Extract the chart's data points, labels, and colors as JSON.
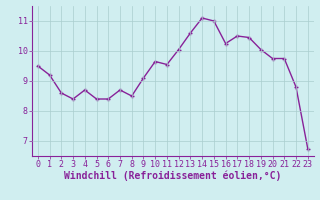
{
  "x": [
    0,
    1,
    2,
    3,
    4,
    5,
    6,
    7,
    8,
    9,
    10,
    11,
    12,
    13,
    14,
    15,
    16,
    17,
    18,
    19,
    20,
    21,
    22,
    23
  ],
  "y": [
    9.5,
    9.2,
    8.6,
    8.4,
    8.7,
    8.4,
    8.4,
    8.7,
    8.5,
    9.1,
    9.65,
    9.55,
    10.05,
    10.6,
    11.1,
    11.0,
    10.25,
    10.5,
    10.45,
    10.05,
    9.75,
    9.75,
    8.8,
    6.75
  ],
  "line_color": "#882299",
  "marker": "+",
  "marker_size": 3.5,
  "marker_linewidth": 1.0,
  "background_color": "#d0eef0",
  "grid_color": "#aacece",
  "xlabel": "Windchill (Refroidissement éolien,°C)",
  "xlabel_fontsize": 7,
  "ylabel": "",
  "ylim": [
    6.5,
    11.5
  ],
  "xlim": [
    -0.5,
    23.5
  ],
  "yticks": [
    7,
    8,
    9,
    10,
    11
  ],
  "xticks": [
    0,
    1,
    2,
    3,
    4,
    5,
    6,
    7,
    8,
    9,
    10,
    11,
    12,
    13,
    14,
    15,
    16,
    17,
    18,
    19,
    20,
    21,
    22,
    23
  ],
  "tick_fontsize": 6,
  "tick_color": "#882299",
  "spine_color": "#882299",
  "linewidth": 1.0
}
